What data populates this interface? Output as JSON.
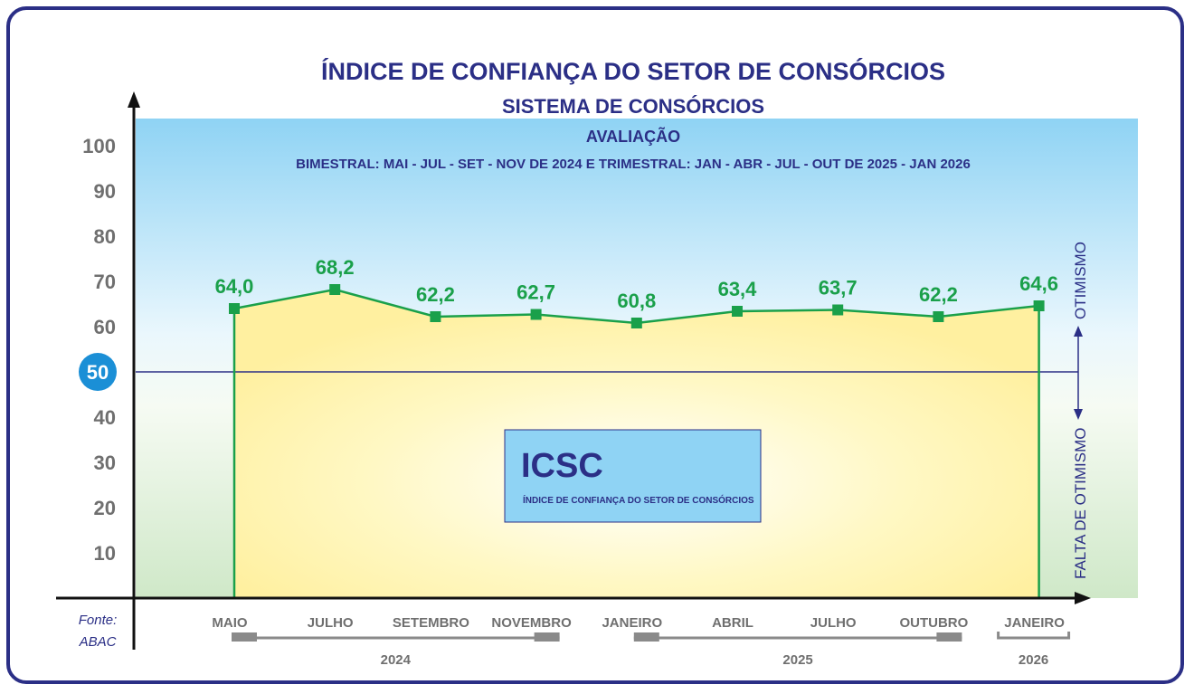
{
  "header": {
    "title": "ÍNDICE DE CONFIANÇA DO SETOR DE CONSÓRCIOS",
    "subtitle": "SISTEMA DE CONSÓRCIOS",
    "evaluation_label": "AVALIAÇÃO",
    "evaluation_detail": "BIMESTRAL: MAI - JUL - SET - NOV DE 2024 E TRIMESTRAL: JAN - ABR - JUL - OUT DE 2025 - JAN 2026"
  },
  "legend_box": {
    "acronym": "ICSC",
    "description": "ÍNDICE DE CONFIANÇA DO SETOR DE CONSÓRCIOS"
  },
  "side_labels": {
    "upper": "OTIMISMO",
    "lower": "FALTA DE OTIMISMO"
  },
  "source": {
    "line1": "Fonte:",
    "line2": "ABAC"
  },
  "years": [
    {
      "label": "2024",
      "from_index": 0,
      "to_index": 3
    },
    {
      "label": "2025",
      "from_index": 4,
      "to_index": 7
    },
    {
      "label": "2026",
      "from_index": 8,
      "to_index": 8
    }
  ],
  "colors": {
    "frame": "#2b2f86",
    "line": "#1aa04a",
    "marker": "#1aa04a",
    "label": "#1aa04a",
    "reference_badge": "#1b8fd6",
    "legend_box": "#8fd3f4",
    "fill_area": "#fff6b0",
    "sky": "#8fd3f4",
    "ground": "#cfe8c8"
  },
  "chart_data": {
    "type": "line",
    "categories": [
      "MAIO",
      "JULHO",
      "SETEMBRO",
      "NOVEMBRO",
      "JANEIRO",
      "ABRIL",
      "JULHO",
      "OUTUBRO",
      "JANEIRO"
    ],
    "series": [
      {
        "values": [
          64.0,
          68.2,
          62.2,
          62.7,
          60.8,
          63.4,
          63.7,
          62.2,
          64.6
        ]
      }
    ],
    "data_labels": [
      "64,0",
      "68,2",
      "62,2",
      "62,7",
      "60,8",
      "63,4",
      "63,7",
      "62,2",
      "64,6"
    ],
    "y_ticks": [
      "10",
      "20",
      "30",
      "40",
      "50",
      "60",
      "70",
      "80",
      "90",
      "100"
    ],
    "reference_line": {
      "value": 50,
      "label": "50"
    },
    "ylim": [
      0,
      100
    ],
    "grid": false,
    "title": "ÍNDICE DE CONFIANÇA DO SETOR DE CONSÓRCIOS",
    "xlabel": "",
    "ylabel": ""
  }
}
